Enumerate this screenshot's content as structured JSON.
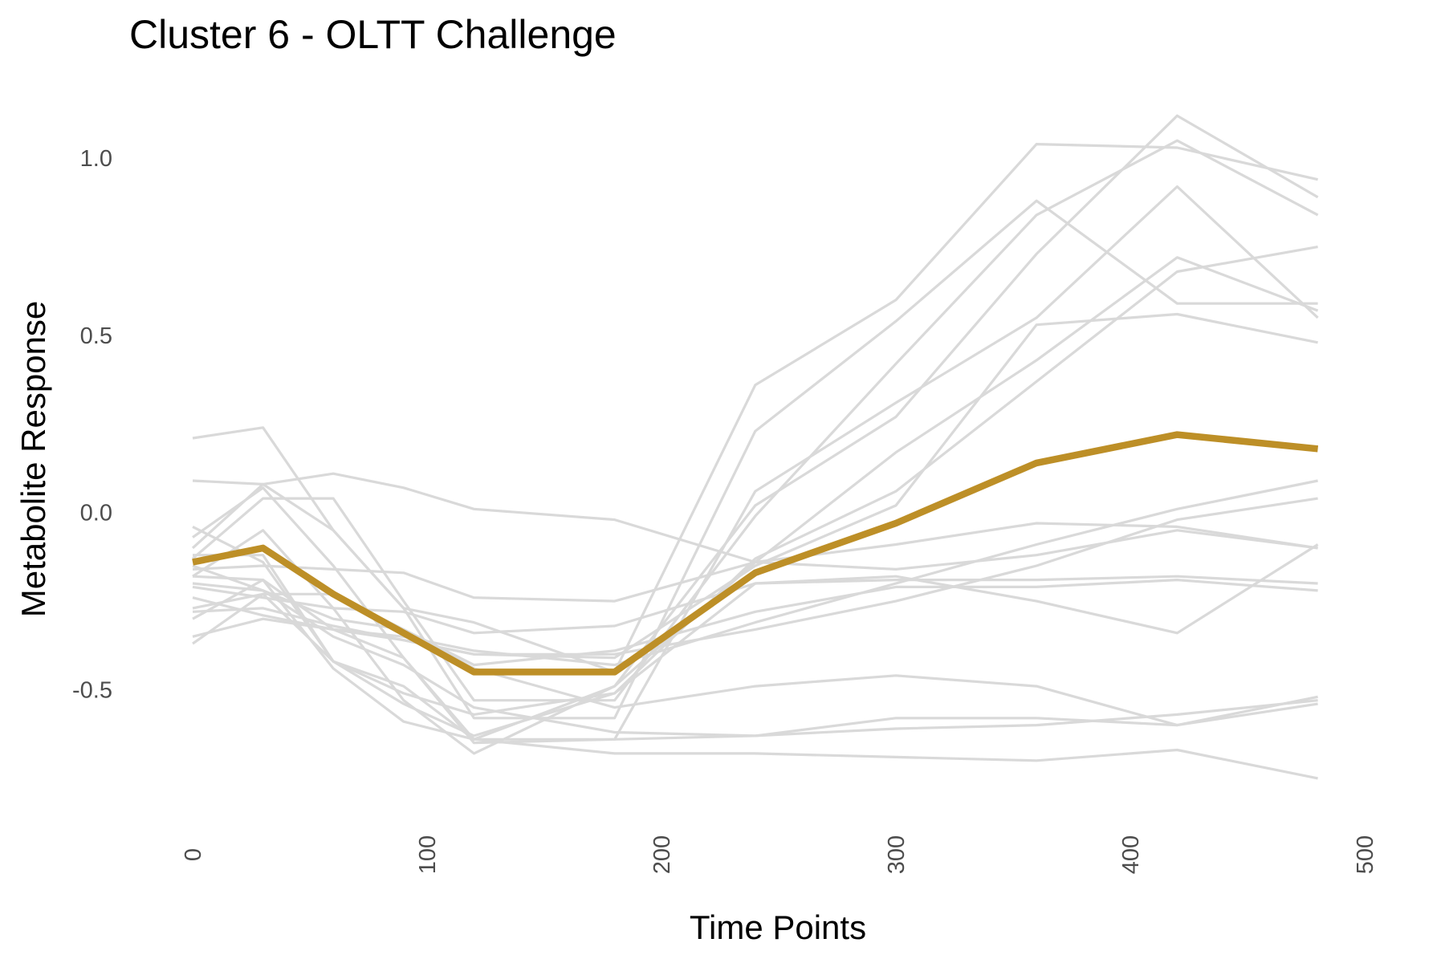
{
  "chart_data": {
    "type": "line",
    "title": "Cluster 6 - OLTT Challenge",
    "xlabel": "Time Points",
    "ylabel": "Metabolite Response",
    "xlim": [
      0,
      500
    ],
    "ylim": [
      -0.85,
      1.15
    ],
    "x_ticks": [
      0,
      100,
      200,
      300,
      400,
      500
    ],
    "y_ticks": [
      -0.5,
      0.0,
      0.5,
      1.0
    ],
    "y_tick_labels": [
      "-0.5",
      "0.0",
      "0.5",
      "1.0"
    ],
    "grid": false,
    "legend": "none",
    "x": [
      0,
      30,
      60,
      90,
      120,
      180,
      240,
      300,
      360,
      420,
      480
    ],
    "background_color": "#ffffff",
    "individual_color": "#d9d9d9",
    "mean_color": "#bd8f27",
    "series": [
      {
        "values": [
          0.21,
          0.24,
          -0.05,
          -0.27,
          -0.31,
          -0.45,
          0.36,
          0.6,
          1.04,
          1.03,
          0.94
        ]
      },
      {
        "values": [
          -0.1,
          0.08,
          -0.05,
          -0.27,
          -0.58,
          -0.58,
          0.23,
          0.54,
          0.88,
          0.59,
          0.59
        ]
      },
      {
        "values": [
          -0.13,
          0.04,
          0.04,
          -0.25,
          -0.53,
          -0.53,
          -0.01,
          0.42,
          0.84,
          1.05,
          0.84
        ]
      },
      {
        "values": [
          -0.07,
          0.07,
          -0.15,
          -0.41,
          -0.65,
          -0.64,
          0.06,
          0.31,
          0.55,
          0.92,
          0.55
        ]
      },
      {
        "values": [
          -0.3,
          -0.19,
          -0.33,
          -0.41,
          -0.64,
          -0.49,
          0.02,
          0.27,
          0.73,
          1.12,
          0.89
        ]
      },
      {
        "values": [
          -0.18,
          -0.05,
          -0.27,
          -0.53,
          -0.68,
          -0.49,
          -0.14,
          0.17,
          0.43,
          0.72,
          0.57
        ]
      },
      {
        "values": [
          -0.04,
          -0.14,
          -0.42,
          -0.54,
          -0.63,
          -0.51,
          -0.13,
          0.06,
          0.37,
          0.68,
          0.75
        ]
      },
      {
        "values": [
          -0.28,
          -0.27,
          -0.32,
          -0.36,
          -0.4,
          -0.41,
          -0.15,
          0.02,
          0.53,
          0.56,
          0.48
        ]
      },
      {
        "values": [
          0.09,
          0.08,
          0.11,
          0.07,
          0.01,
          -0.02,
          -0.14,
          -0.16,
          -0.12,
          -0.05,
          -0.1
        ]
      },
      {
        "values": [
          -0.16,
          -0.15,
          -0.16,
          -0.17,
          -0.24,
          -0.25,
          -0.14,
          -0.09,
          -0.03,
          -0.04,
          -0.1
        ]
      },
      {
        "values": [
          -0.21,
          -0.24,
          -0.27,
          -0.28,
          -0.34,
          -0.32,
          -0.2,
          -0.19,
          -0.19,
          -0.18,
          -0.2
        ]
      },
      {
        "values": [
          -0.37,
          -0.23,
          -0.42,
          -0.51,
          -0.57,
          -0.51,
          -0.2,
          -0.18,
          -0.25,
          -0.34,
          -0.09
        ]
      },
      {
        "values": [
          -0.24,
          -0.29,
          -0.33,
          -0.35,
          -0.39,
          -0.43,
          -0.31,
          -0.2,
          -0.09,
          0.01,
          0.09
        ]
      },
      {
        "values": [
          -0.35,
          -0.3,
          -0.33,
          -0.36,
          -0.4,
          -0.4,
          -0.33,
          -0.25,
          -0.15,
          -0.02,
          0.04
        ]
      },
      {
        "values": [
          -0.27,
          -0.23,
          -0.23,
          -0.33,
          -0.43,
          -0.39,
          -0.28,
          -0.21,
          -0.21,
          -0.19,
          -0.22
        ]
      },
      {
        "values": [
          -0.15,
          -0.22,
          -0.3,
          -0.33,
          -0.44,
          -0.55,
          -0.49,
          -0.46,
          -0.49,
          -0.6,
          -0.52
        ]
      },
      {
        "values": [
          -0.18,
          -0.19,
          -0.44,
          -0.59,
          -0.64,
          -0.68,
          -0.68,
          -0.69,
          -0.7,
          -0.67,
          -0.75
        ]
      },
      {
        "values": [
          -0.12,
          -0.12,
          -0.42,
          -0.49,
          -0.64,
          -0.64,
          -0.63,
          -0.61,
          -0.6,
          -0.57,
          -0.53
        ]
      },
      {
        "values": [
          -0.2,
          -0.22,
          -0.35,
          -0.43,
          -0.55,
          -0.62,
          -0.63,
          -0.58,
          -0.58,
          -0.6,
          -0.54
        ]
      }
    ],
    "mean_series": {
      "values": [
        -0.14,
        -0.1,
        -0.23,
        -0.34,
        -0.45,
        -0.45,
        -0.17,
        -0.03,
        0.14,
        0.22,
        0.18
      ]
    }
  }
}
